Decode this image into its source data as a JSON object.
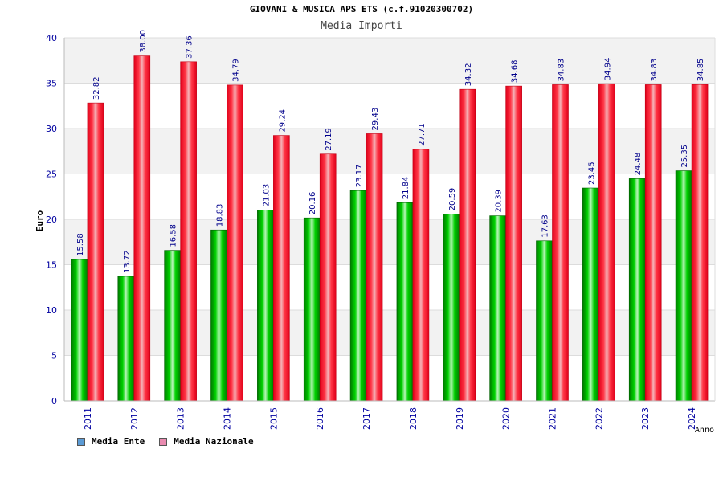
{
  "header": {
    "title": "GIOVANI & MUSICA APS ETS (c.f.91020300702)",
    "subtitle": "Media Importi"
  },
  "colors": {
    "series_ente": "#00c000",
    "series_nazionale": "#ff2a3a",
    "legend_ente": "#5b9bd5",
    "legend_nazionale": "#e98bb0",
    "axis_text": "#0000a0",
    "band": "#f2f2f2"
  },
  "chart_data": {
    "type": "bar",
    "title": "Media Importi",
    "xlabel": "Anno",
    "ylabel": "Euro",
    "ylim": [
      0,
      40
    ],
    "yticks": [
      0,
      5,
      10,
      15,
      20,
      25,
      30,
      35,
      40
    ],
    "grid": true,
    "legend_position": "bottom-left",
    "categories": [
      "2011",
      "2012",
      "2013",
      "2014",
      "2015",
      "2016",
      "2017",
      "2018",
      "2019",
      "2020",
      "2021",
      "2022",
      "2023",
      "2024"
    ],
    "series": [
      {
        "name": "Media Ente",
        "values": [
          15.58,
          13.72,
          16.58,
          18.83,
          21.03,
          20.16,
          23.17,
          21.84,
          20.59,
          20.39,
          17.63,
          23.45,
          24.48,
          25.35
        ],
        "labels": [
          "15.58",
          "13.72",
          "16.58",
          "18.83",
          "21.03",
          "20.16",
          "23.17",
          "21.84",
          "20.59",
          "20.39",
          "17.63",
          "23.45",
          "24.48",
          "25.35"
        ]
      },
      {
        "name": "Media Nazionale",
        "values": [
          32.82,
          38.0,
          37.36,
          34.79,
          29.24,
          27.19,
          29.43,
          27.71,
          34.32,
          34.68,
          34.83,
          34.94,
          34.83,
          34.85
        ],
        "labels": [
          "32.82",
          "38.00",
          "37.36",
          "34.79",
          "29.24",
          "27.19",
          "29.43",
          "27.71",
          "34.32",
          "34.68",
          "34.83",
          "34.94",
          "34.83",
          "34.85"
        ]
      }
    ]
  }
}
